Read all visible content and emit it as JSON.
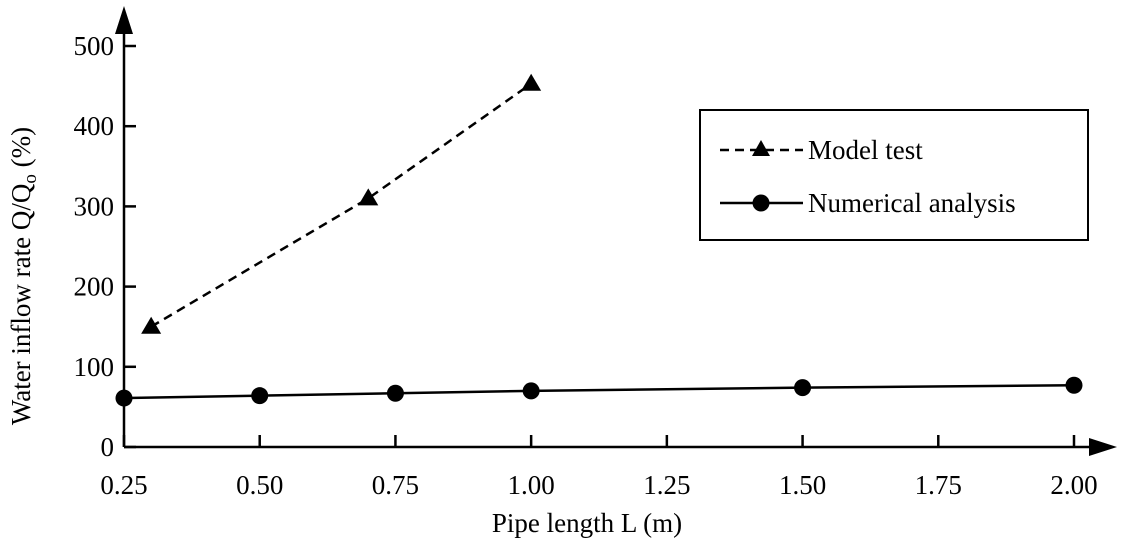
{
  "chart_data": {
    "type": "line",
    "xlabel": "Pipe length L (m)",
    "ylabel_parts": {
      "before": "Water inflow rate Q/Q",
      "sub": "o",
      "after": " (%)"
    },
    "xlim": [
      0.25,
      2.0
    ],
    "ylim": [
      0,
      500
    ],
    "x_ticks": [
      0.25,
      0.5,
      0.75,
      1.0,
      1.25,
      1.5,
      1.75,
      2.0
    ],
    "x_tick_labels": [
      "0.25",
      "0.50",
      "0.75",
      "1.00",
      "1.25",
      "1.50",
      "1.75",
      "2.00"
    ],
    "y_ticks": [
      0,
      100,
      200,
      300,
      400,
      500
    ],
    "y_tick_labels": [
      "0",
      "100",
      "200",
      "300",
      "400",
      "500"
    ],
    "grid": false,
    "legend_position": "top-right",
    "series": [
      {
        "name": "Model test",
        "marker": "triangle",
        "line_style": "dashed",
        "color": "#000000",
        "x": [
          0.3,
          0.7,
          1.0
        ],
        "y": [
          150,
          310,
          453
        ]
      },
      {
        "name": "Numerical analysis",
        "marker": "circle",
        "line_style": "solid",
        "color": "#000000",
        "x": [
          0.25,
          0.5,
          0.75,
          1.0,
          1.5,
          2.0
        ],
        "y": [
          61,
          64,
          67,
          70,
          74,
          77
        ]
      }
    ]
  }
}
